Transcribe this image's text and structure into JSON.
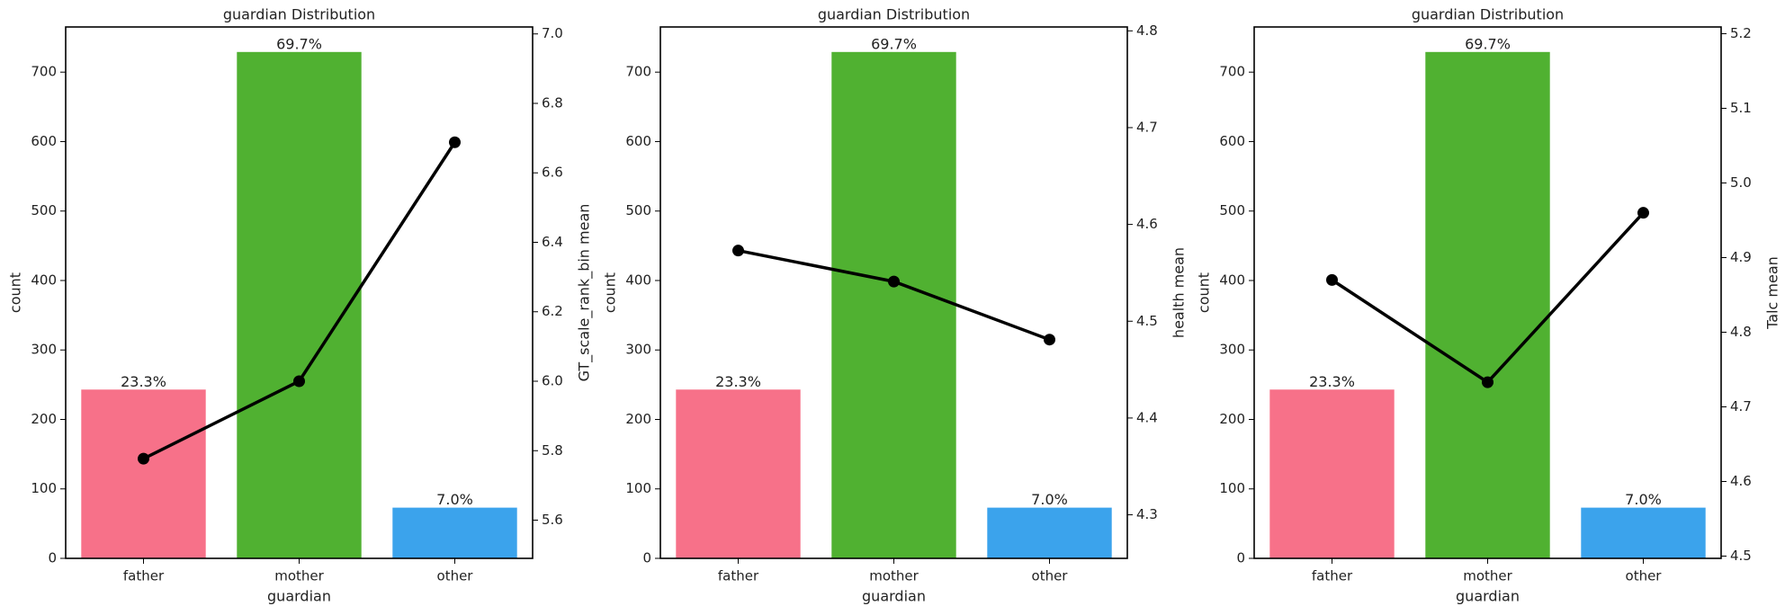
{
  "chart_data": [
    {
      "type": "bar",
      "title": "guardian Distribution",
      "xlabel": "guardian",
      "ylabel": "count",
      "y2label": "GT_scale_rank_bin mean",
      "categories": [
        "father",
        "mother",
        "other"
      ],
      "series": [
        {
          "type": "bar",
          "colors": [
            "#f77189",
            "#50b131",
            "#3ba3ec"
          ],
          "values": [
            243,
            729,
            73
          ],
          "value_labels": [
            "23.3%",
            "69.7%",
            "7.0%"
          ]
        },
        {
          "type": "line",
          "axis": "y2",
          "color": "#000000",
          "values": [
            5.777,
            6.0,
            6.688
          ]
        }
      ],
      "ylim": [
        0,
        765
      ],
      "yticks": [
        0,
        100,
        200,
        300,
        400,
        500,
        600,
        700
      ],
      "y2lim": [
        5.49,
        7.02
      ],
      "y2ticks": [
        5.6,
        5.8,
        {
          "value": 6,
          "label": "6.0"
        },
        6.2,
        6.4,
        6.6,
        6.8,
        {
          "value": 7,
          "label": "7.0"
        }
      ]
    },
    {
      "type": "bar",
      "title": "guardian Distribution",
      "xlabel": "guardian",
      "ylabel": "count",
      "y2label": "health mean",
      "categories": [
        "father",
        "mother",
        "other"
      ],
      "series": [
        {
          "type": "bar",
          "colors": [
            "#f77189",
            "#50b131",
            "#3ba3ec"
          ],
          "values": [
            243,
            729,
            73
          ],
          "value_labels": [
            "23.3%",
            "69.7%",
            "7.0%"
          ]
        },
        {
          "type": "line",
          "axis": "y2",
          "color": "#000000",
          "values": [
            4.573,
            4.541,
            4.481
          ]
        }
      ],
      "ylim": [
        0,
        765
      ],
      "yticks": [
        0,
        100,
        200,
        300,
        400,
        500,
        600,
        700
      ],
      "y2lim": [
        4.255,
        4.804
      ],
      "y2ticks": [
        4.3,
        4.4,
        4.5,
        4.6,
        4.7,
        4.8
      ]
    },
    {
      "type": "bar",
      "title": "guardian Distribution",
      "xlabel": "guardian",
      "ylabel": "count",
      "y2label": "Talc mean",
      "categories": [
        "father",
        "mother",
        "other"
      ],
      "series": [
        {
          "type": "bar",
          "colors": [
            "#f77189",
            "#50b131",
            "#3ba3ec"
          ],
          "values": [
            243,
            729,
            73
          ],
          "value_labels": [
            "23.3%",
            "69.7%",
            "7.0%"
          ]
        },
        {
          "type": "line",
          "axis": "y2",
          "color": "#000000",
          "values": [
            4.87,
            4.733,
            4.96
          ]
        }
      ],
      "ylim": [
        0,
        765
      ],
      "yticks": [
        0,
        100,
        200,
        300,
        400,
        500,
        600,
        700
      ],
      "y2lim": [
        4.497,
        5.209
      ],
      "y2ticks": [
        4.5,
        4.6,
        4.7,
        4.8,
        4.9,
        {
          "value": 5,
          "label": "5.0"
        },
        5.1,
        5.2
      ]
    }
  ]
}
